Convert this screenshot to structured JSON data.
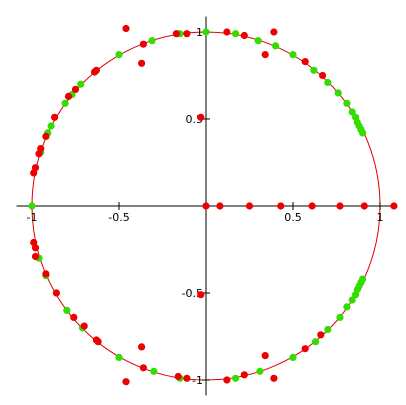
{
  "chart_data": {
    "type": "scatter",
    "title": "",
    "xlabel": "",
    "ylabel": "",
    "xlim": [
      -1.1,
      1.1
    ],
    "ylim": [
      -1.1,
      1.1
    ],
    "grid": false,
    "legend": "none",
    "x_ticks": [
      {
        "value": -1,
        "label": "-1"
      },
      {
        "value": -0.5,
        "label": "-0.5"
      },
      {
        "value": 0.5,
        "label": "0.5"
      },
      {
        "value": 1,
        "label": "1"
      }
    ],
    "y_ticks": [
      {
        "value": 1,
        "label": "1"
      },
      {
        "value": 0.5,
        "label": "0.5"
      },
      {
        "value": -0.5,
        "label": "-0.5"
      },
      {
        "value": -1,
        "label": "-1"
      }
    ],
    "curve": {
      "type": "unit-circle",
      "radius": 1,
      "color": "#e00000"
    },
    "series": [
      {
        "color": "#33dd00",
        "points": [
          [
            0.0,
            1.0
          ],
          [
            0.17,
            0.99
          ],
          [
            0.3,
            0.95
          ],
          [
            0.4,
            0.92
          ],
          [
            0.5,
            0.87
          ],
          [
            0.62,
            0.78
          ],
          [
            0.7,
            0.71
          ],
          [
            0.76,
            0.65
          ],
          [
            0.81,
            0.59
          ],
          [
            0.84,
            0.54
          ],
          [
            0.86,
            0.51
          ],
          [
            0.87,
            0.48
          ],
          [
            0.88,
            0.46
          ],
          [
            0.89,
            0.44
          ],
          [
            0.9,
            0.42
          ],
          [
            -0.15,
            0.99
          ],
          [
            -0.31,
            0.95
          ],
          [
            -0.5,
            0.87
          ],
          [
            -0.64,
            0.77
          ],
          [
            -0.72,
            0.7
          ],
          [
            -0.77,
            0.64
          ],
          [
            -0.81,
            0.59
          ],
          [
            -0.89,
            0.46
          ],
          [
            -0.91,
            0.42
          ],
          [
            -0.95,
            0.31
          ],
          [
            -1.0,
            0.0
          ],
          [
            -0.96,
            -0.3
          ],
          [
            -0.92,
            -0.4
          ],
          [
            -0.8,
            -0.6
          ],
          [
            -0.71,
            -0.7
          ],
          [
            -0.5,
            -0.87
          ],
          [
            -0.3,
            -0.95
          ],
          [
            -0.15,
            -0.99
          ],
          [
            0.17,
            -0.99
          ],
          [
            0.31,
            -0.95
          ],
          [
            0.5,
            -0.87
          ],
          [
            0.63,
            -0.78
          ],
          [
            0.7,
            -0.71
          ],
          [
            0.77,
            -0.64
          ],
          [
            0.81,
            -0.58
          ],
          [
            0.84,
            -0.54
          ],
          [
            0.86,
            -0.51
          ],
          [
            0.87,
            -0.48
          ],
          [
            0.88,
            -0.46
          ],
          [
            0.89,
            -0.44
          ],
          [
            0.9,
            -0.42
          ]
        ]
      },
      {
        "color": "#ee0000",
        "points": [
          [
            0.0,
            0.0
          ],
          [
            0.08,
            0.0
          ],
          [
            0.25,
            0.0
          ],
          [
            0.43,
            0.0
          ],
          [
            0.61,
            0.0
          ],
          [
            0.77,
            0.0
          ],
          [
            0.91,
            0.0
          ],
          [
            1.08,
            0.0
          ],
          [
            -0.03,
            0.51
          ],
          [
            -0.03,
            -0.51
          ],
          [
            0.12,
            1.0
          ],
          [
            0.22,
            0.98
          ],
          [
            0.39,
            1.0
          ],
          [
            0.34,
            0.87
          ],
          [
            0.57,
            0.83
          ],
          [
            0.67,
            0.75
          ],
          [
            -0.46,
            1.02
          ],
          [
            -0.11,
            0.99
          ],
          [
            -0.17,
            0.99
          ],
          [
            -0.36,
            0.93
          ],
          [
            -0.37,
            0.82
          ],
          [
            -0.63,
            0.78
          ],
          [
            -0.64,
            0.77
          ],
          [
            -0.75,
            0.67
          ],
          [
            -0.79,
            0.63
          ],
          [
            -0.87,
            0.51
          ],
          [
            -0.92,
            0.4
          ],
          [
            -0.95,
            0.33
          ],
          [
            -0.96,
            0.3
          ],
          [
            -0.98,
            0.22
          ],
          [
            -0.99,
            0.19
          ],
          [
            -0.99,
            -0.21
          ],
          [
            -0.98,
            -0.24
          ],
          [
            -0.98,
            -0.29
          ],
          [
            -0.92,
            -0.39
          ],
          [
            -0.86,
            -0.5
          ],
          [
            -0.76,
            -0.64
          ],
          [
            -0.7,
            -0.69
          ],
          [
            -0.63,
            -0.77
          ],
          [
            -0.62,
            -0.78
          ],
          [
            -0.37,
            -0.81
          ],
          [
            -0.36,
            -0.93
          ],
          [
            -0.46,
            -1.01
          ],
          [
            -0.16,
            -0.98
          ],
          [
            -0.11,
            -0.99
          ],
          [
            0.12,
            -1.0
          ],
          [
            0.22,
            -0.97
          ],
          [
            0.34,
            -0.86
          ],
          [
            0.39,
            -0.99
          ],
          [
            0.57,
            -0.82
          ],
          [
            0.66,
            -0.74
          ]
        ]
      }
    ]
  }
}
